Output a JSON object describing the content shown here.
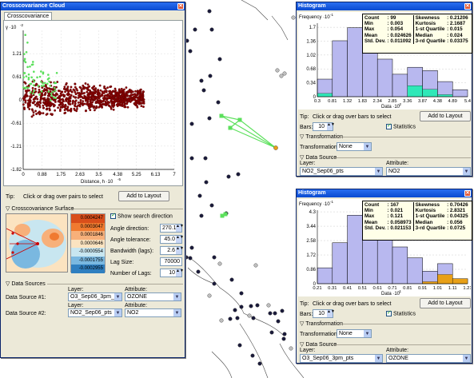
{
  "map": {
    "line_color": "#444444",
    "point_color_dark": "#1a1a3a",
    "point_color_light": "#bfbfbf",
    "highlight_color": "#5ce05c"
  },
  "cc_window": {
    "title": "Crosscovariance Cloud",
    "tab": "Crosscovariance",
    "ylabel": "γ ·10",
    "ylabel_exp": "-2",
    "xlabel": "Distance, h ·10",
    "xlabel_exp": "-5",
    "yticks": [
      "1.21",
      "0.61",
      "0",
      "-0.61",
      "-1.21",
      "-1.82"
    ],
    "xticks": [
      "0",
      "0.88",
      "1.75",
      "2.63",
      "3.5",
      "4.38",
      "5.25",
      "6.13",
      "7"
    ],
    "tip_label": "Tip:",
    "tip_text": "Click or drag over pairs to select",
    "add_button": "Add to Layout",
    "surface_label": "▽ Crosscovariance Surface",
    "legend": [
      {
        "label": "0.0004247",
        "color": "#d94e1a"
      },
      {
        "label": "0.0003047",
        "color": "#f07a30"
      },
      {
        "label": "0.0001846",
        "color": "#f7b07a"
      },
      {
        "label": "0.0000646",
        "color": "#fbe3c0"
      },
      {
        "label": "-0.0000554",
        "color": "#c8e6f0"
      },
      {
        "label": "-0.0001755",
        "color": "#7ab8e0"
      },
      {
        "label": "-0.0002955",
        "color": "#2f7fc0"
      }
    ],
    "show_search": "Show search direction",
    "angle_dir_label": "Angle direction:",
    "angle_dir_value": "270.1",
    "angle_tol_label": "Angle tolerance:",
    "angle_tol_value": "45.0",
    "bandwidth_label": "Bandwidth (lags):",
    "bandwidth_value": "2.6",
    "lag_size_label": "Lag Size:",
    "lag_size_value": "70000",
    "num_lags_label": "Number of Lags:",
    "num_lags_value": "10",
    "data_sources_label": "▽ Data Sources",
    "layer_label": "Layer:",
    "attribute_label": "Attribute:",
    "ds1_label": "Data Source #1:",
    "ds1_layer": "O3_Sep06_3pm_pts",
    "ds1_attr": "OZONE",
    "ds2_label": "Data Source #2:",
    "ds2_layer": "NO2_Sep06_pts",
    "ds2_attr": "NO2",
    "point_color": "#8b0000",
    "selected_color": "#5ce05c"
  },
  "hist1": {
    "title": "Histogram",
    "freq_label": "Frequency ·10",
    "freq_exp": "-1",
    "data_label": "Data ·10",
    "data_exp": "-2",
    "yticks": [
      "1.7",
      "1.36",
      "1.02",
      "0.68",
      "0.34",
      "0"
    ],
    "xticks": [
      "0.3",
      "0.81",
      "1.32",
      "1.83",
      "2.34",
      "2.85",
      "3.36",
      "3.87",
      "4.38",
      "4.89",
      "5.4"
    ],
    "bars": [
      0.43,
      1.37,
      1.69,
      1.37,
      0.92,
      0.55,
      0.72,
      0.64,
      0.37,
      0.17
    ],
    "selected": [
      0.08,
      0.0,
      0.0,
      0.0,
      0.0,
      0.0,
      0.27,
      0.18,
      0.05,
      0.0
    ],
    "ymax": 1.8,
    "stats_left": [
      [
        "Count",
        ": 99"
      ],
      [
        "Min",
        ": 0.003"
      ],
      [
        "Max",
        ": 0.054"
      ],
      [
        "Mean",
        ": 0.024626"
      ],
      [
        "Std. Dev.",
        ": 0.011092"
      ]
    ],
    "stats_right": [
      [
        "Skewness",
        ": 0.21206"
      ],
      [
        "Kurtosis",
        ": 2.1687"
      ],
      [
        "1-st Quartile",
        ": 0.015"
      ],
      [
        "Median",
        ": 0.024"
      ],
      [
        "3-rd Quartile",
        ": 0.03375"
      ]
    ],
    "tip_label": "Tip:",
    "tip_text": "Click or drag over bars to select",
    "add_button": "Add to Layout",
    "bars_label": "Bars:",
    "bars_value": "10",
    "statistics_label": "Statistics",
    "transformation_section": "▽ Transformation",
    "transformation_label": "Transformation:",
    "transformation_value": "None",
    "data_source_section": "▽ Data Source",
    "layer_label": "Layer:",
    "attribute_label": "Attribute:",
    "layer_value": "NO2_Sep06_pts",
    "attribute_value": "NO2",
    "bar_color": "#b8b8ef",
    "sel_color": "#2fe8b8"
  },
  "hist2": {
    "title": "Histogram",
    "freq_label": "Frequency ·10",
    "freq_exp": "-1",
    "data_label": "Data ·10",
    "data_exp": "-1",
    "yticks": [
      "4.3",
      "3.44",
      "2.58",
      "1.72",
      "0.86",
      "0"
    ],
    "xticks": [
      "0.21",
      "0.31",
      "0.41",
      "0.51",
      "0.61",
      "0.71",
      "0.81",
      "0.91",
      "1.01",
      "1.11",
      "1.21"
    ],
    "bars": [
      0.95,
      2.45,
      4.1,
      3.6,
      2.7,
      2.2,
      1.55,
      0.75,
      1.2,
      0.3
    ],
    "selected": [
      0.0,
      0.0,
      0.0,
      0.0,
      0.0,
      0.0,
      0.0,
      0.12,
      0.55,
      0.3
    ],
    "ymax": 4.4,
    "stats_left": [
      [
        "Count",
        ": 167"
      ],
      [
        "Min",
        ": 0.021"
      ],
      [
        "Max",
        ": 0.121"
      ],
      [
        "Mean",
        ": 0.058973"
      ],
      [
        "Std. Dev.",
        ": 0.021153"
      ]
    ],
    "stats_right": [
      [
        "Skewness",
        ": 0.70426"
      ],
      [
        "Kurtosis",
        ": 2.8321"
      ],
      [
        "1-st Quartile",
        ": 0.04325"
      ],
      [
        "Median",
        ": 0.056"
      ],
      [
        "3-rd Quartile",
        ": 0.0725"
      ]
    ],
    "tip_label": "Tip:",
    "tip_text": "Click or drag over bars to select",
    "add_button": "Add to Layout",
    "bars_label": "Bars:",
    "bars_value": "10",
    "statistics_label": "Statistics",
    "transformation_section": "▽ Transformation",
    "transformation_label": "Transformation:",
    "transformation_value": "None",
    "data_source_section": "▽ Data Source",
    "layer_label": "Layer:",
    "attribute_label": "Attribute:",
    "layer_value": "O3_Sep06_3pm_pts",
    "attribute_value": "OZONE",
    "bar_color": "#b8b8ef",
    "sel_color": "#e8a018"
  }
}
